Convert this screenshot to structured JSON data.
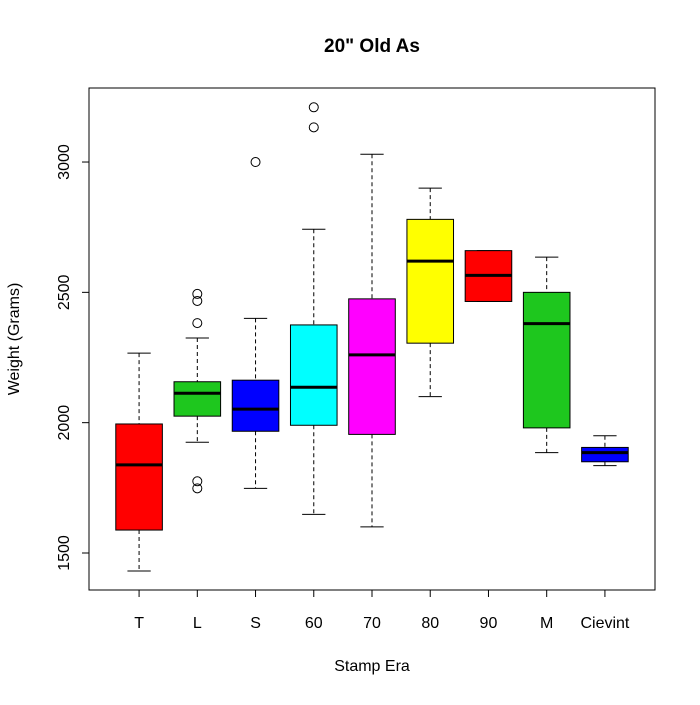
{
  "chart_data": {
    "type": "boxplot",
    "title": "20\" Old As",
    "x_label": "Stamp Era",
    "y_label": "Weight (Grams)",
    "categories": [
      "T",
      "L",
      "S",
      "60",
      "70",
      "80",
      "90",
      "M",
      "Cievint"
    ],
    "boxes": [
      {
        "min": 1431,
        "q1": 1588,
        "median": 1838,
        "q3": 1995,
        "max": 2267,
        "outliers": [],
        "color": "#ff0000"
      },
      {
        "min": 1925,
        "q1": 2025,
        "median": 2113,
        "q3": 2157,
        "max": 2325,
        "outliers": [
          2494,
          2467,
          2382,
          1775,
          1748
        ],
        "color": "#1ec71e"
      },
      {
        "min": 1748,
        "q1": 1967,
        "median": 2052,
        "q3": 2163,
        "max": 2400,
        "outliers": [
          3000
        ],
        "color": "#0000ff"
      },
      {
        "min": 1648,
        "q1": 1990,
        "median": 2136,
        "q3": 2375,
        "max": 2742,
        "outliers": [
          3210,
          3133
        ],
        "color": "#00ffff"
      },
      {
        "min": 1600,
        "q1": 1955,
        "median": 2260,
        "q3": 2475,
        "max": 3030,
        "outliers": [],
        "color": "#ff00ff"
      },
      {
        "min": 2100,
        "q1": 2305,
        "median": 2620,
        "q3": 2780,
        "max": 2900,
        "outliers": [],
        "color": "#ffff00"
      },
      {
        "min": 2465,
        "q1": 2465,
        "median": 2565,
        "q3": 2660,
        "max": 2660,
        "outliers": [],
        "color": "#ff0000"
      },
      {
        "min": 1885,
        "q1": 1980,
        "median": 2380,
        "q3": 2500,
        "max": 2635,
        "outliers": [],
        "color": "#1ec71e"
      },
      {
        "min": 1835,
        "q1": 1850,
        "median": 1885,
        "q3": 1905,
        "max": 1950,
        "outliers": [],
        "color": "#0000ff"
      }
    ],
    "ylim": [
      1358,
      3284
    ],
    "yticks": [
      1500,
      2000,
      2500,
      3000
    ]
  }
}
